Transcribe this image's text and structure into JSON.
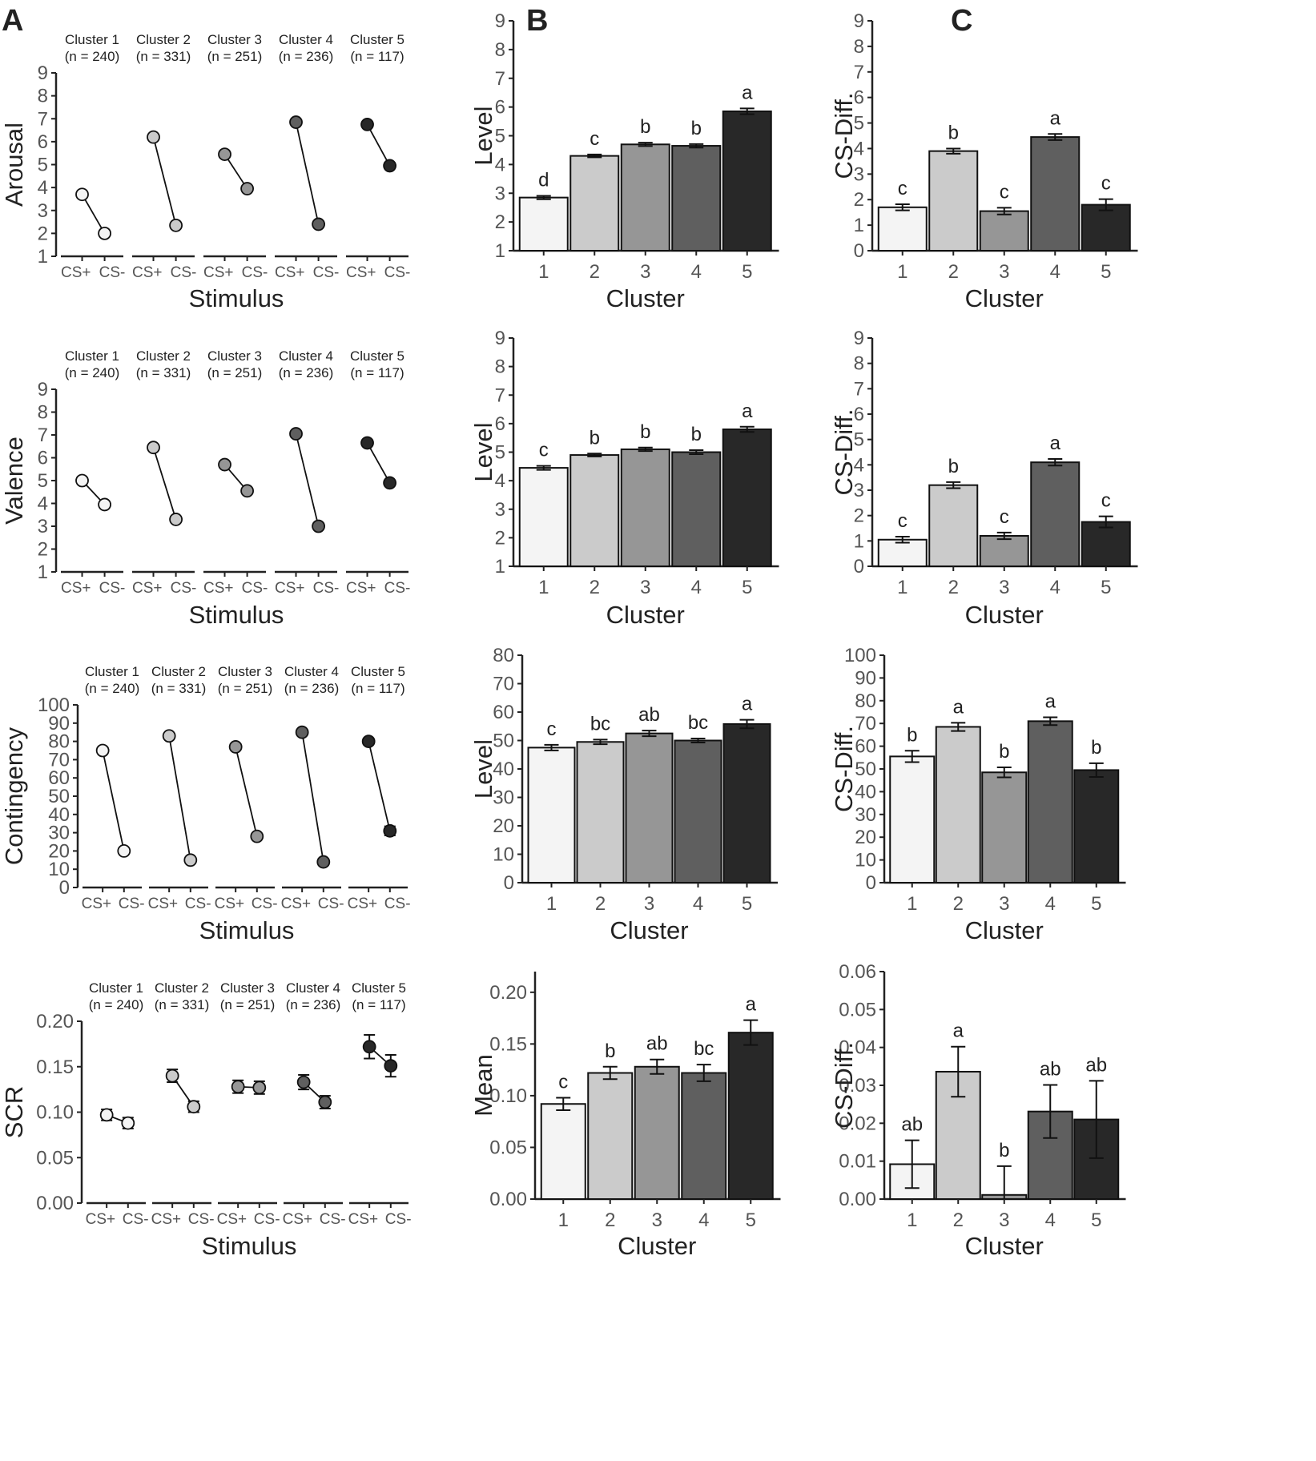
{
  "panel_letters": [
    "A",
    "B",
    "C"
  ],
  "cluster_colors": [
    "#f4f4f4",
    "#cbcbcb",
    "#969696",
    "#5f5f5f",
    "#282828"
  ],
  "chart_data": [
    {
      "id": "A1",
      "type": "line",
      "panel": "A",
      "ylabel": "Arousal",
      "xlabel": "Stimulus",
      "ylim": [
        1,
        9
      ],
      "yticks": [
        "1",
        "2",
        "3",
        "4",
        "5",
        "6",
        "7",
        "8",
        "9"
      ],
      "xticks": [
        "CS+",
        "CS-"
      ],
      "series": [
        {
          "name": "Cluster 1",
          "n": "(n = 240)",
          "values": [
            3.7,
            2.0
          ],
          "err": [
            0,
            0
          ]
        },
        {
          "name": "Cluster 2",
          "n": "(n = 331)",
          "values": [
            6.2,
            2.35
          ],
          "err": [
            0,
            0
          ]
        },
        {
          "name": "Cluster 3",
          "n": "(n = 251)",
          "values": [
            5.45,
            3.95
          ],
          "err": [
            0,
            0
          ]
        },
        {
          "name": "Cluster 4",
          "n": "(n = 236)",
          "values": [
            6.85,
            2.4
          ],
          "err": [
            0,
            0
          ]
        },
        {
          "name": "Cluster 5",
          "n": "(n = 117)",
          "values": [
            6.75,
            4.95
          ],
          "err": [
            0,
            0
          ]
        }
      ]
    },
    {
      "id": "B1",
      "type": "bar",
      "panel": "B",
      "ylabel": "Level",
      "xlabel": "Cluster",
      "ylim": [
        1,
        9
      ],
      "yticks": [
        "1",
        "2",
        "3",
        "4",
        "5",
        "6",
        "7",
        "8",
        "9"
      ],
      "categories": [
        "1",
        "2",
        "3",
        "4",
        "5"
      ],
      "values": [
        2.85,
        4.3,
        4.7,
        4.65,
        5.85
      ],
      "err": [
        0.06,
        0.05,
        0.06,
        0.06,
        0.1
      ],
      "letters": [
        "d",
        "c",
        "b",
        "b",
        "a"
      ]
    },
    {
      "id": "C1",
      "type": "bar",
      "panel": "C",
      "ylabel": "CS-Diff.",
      "xlabel": "Cluster",
      "ylim": [
        0,
        9
      ],
      "yticks": [
        "0",
        "1",
        "2",
        "3",
        "4",
        "5",
        "6",
        "7",
        "8",
        "9"
      ],
      "categories": [
        "1",
        "2",
        "3",
        "4",
        "5"
      ],
      "values": [
        1.7,
        3.9,
        1.55,
        4.45,
        1.8
      ],
      "err": [
        0.12,
        0.1,
        0.13,
        0.12,
        0.22
      ],
      "letters": [
        "c",
        "b",
        "c",
        "a",
        "c"
      ]
    },
    {
      "id": "A2",
      "type": "line",
      "panel": "A",
      "ylabel": "Valence",
      "xlabel": "Stimulus",
      "ylim": [
        1,
        9
      ],
      "yticks": [
        "1",
        "2",
        "3",
        "4",
        "5",
        "6",
        "7",
        "8",
        "9"
      ],
      "xticks": [
        "CS+",
        "CS-"
      ],
      "series": [
        {
          "name": "Cluster 1",
          "n": "(n = 240)",
          "values": [
            5.0,
            3.95
          ],
          "err": [
            0,
            0
          ]
        },
        {
          "name": "Cluster 2",
          "n": "(n = 331)",
          "values": [
            6.45,
            3.3
          ],
          "err": [
            0,
            0
          ]
        },
        {
          "name": "Cluster 3",
          "n": "(n = 251)",
          "values": [
            5.7,
            4.55
          ],
          "err": [
            0,
            0
          ]
        },
        {
          "name": "Cluster 4",
          "n": "(n = 236)",
          "values": [
            7.05,
            3.0
          ],
          "err": [
            0,
            0
          ]
        },
        {
          "name": "Cluster 5",
          "n": "(n = 117)",
          "values": [
            6.65,
            4.9
          ],
          "err": [
            0,
            0
          ]
        }
      ]
    },
    {
      "id": "B2",
      "type": "bar",
      "panel": "B",
      "ylabel": "Level",
      "xlabel": "Cluster",
      "ylim": [
        1,
        9
      ],
      "yticks": [
        "1",
        "2",
        "3",
        "4",
        "5",
        "6",
        "7",
        "8",
        "9"
      ],
      "categories": [
        "1",
        "2",
        "3",
        "4",
        "5"
      ],
      "values": [
        4.45,
        4.9,
        5.1,
        5.0,
        5.8
      ],
      "err": [
        0.07,
        0.05,
        0.06,
        0.07,
        0.09
      ],
      "letters": [
        "c",
        "b",
        "b",
        "b",
        "a"
      ]
    },
    {
      "id": "C2",
      "type": "bar",
      "panel": "C",
      "ylabel": "CS-Diff.",
      "xlabel": "Cluster",
      "ylim": [
        0,
        9
      ],
      "yticks": [
        "0",
        "1",
        "2",
        "3",
        "4",
        "5",
        "6",
        "7",
        "8",
        "9"
      ],
      "categories": [
        "1",
        "2",
        "3",
        "4",
        "5"
      ],
      "values": [
        1.05,
        3.2,
        1.2,
        4.1,
        1.75
      ],
      "err": [
        0.12,
        0.12,
        0.13,
        0.13,
        0.22
      ],
      "letters": [
        "c",
        "b",
        "c",
        "a",
        "c"
      ]
    },
    {
      "id": "A3",
      "type": "line",
      "panel": "A",
      "ylabel": "Contingency",
      "xlabel": "Stimulus",
      "ylim": [
        0,
        100
      ],
      "yticks": [
        "0",
        "10",
        "20",
        "30",
        "40",
        "50",
        "60",
        "70",
        "80",
        "90",
        "100"
      ],
      "xticks": [
        "CS+",
        "CS-"
      ],
      "series": [
        {
          "name": "Cluster 1",
          "n": "(n = 240)",
          "values": [
            75,
            20
          ],
          "err": [
            0,
            0
          ]
        },
        {
          "name": "Cluster 2",
          "n": "(n = 331)",
          "values": [
            83,
            15
          ],
          "err": [
            0,
            0
          ]
        },
        {
          "name": "Cluster 3",
          "n": "(n = 251)",
          "values": [
            77,
            28
          ],
          "err": [
            0,
            0
          ]
        },
        {
          "name": "Cluster 4",
          "n": "(n = 236)",
          "values": [
            85,
            14
          ],
          "err": [
            0,
            0
          ]
        },
        {
          "name": "Cluster 5",
          "n": "(n = 117)",
          "values": [
            80,
            31
          ],
          "err": [
            0,
            2.5
          ]
        }
      ]
    },
    {
      "id": "B3",
      "type": "bar",
      "panel": "B",
      "ylabel": "Level",
      "xlabel": "Cluster",
      "ylim": [
        0,
        80
      ],
      "yticks": [
        "0",
        "10",
        "20",
        "30",
        "40",
        "50",
        "60",
        "70",
        "80"
      ],
      "categories": [
        "1",
        "2",
        "3",
        "4",
        "5"
      ],
      "values": [
        47.5,
        49.5,
        52.5,
        50.0,
        55.8
      ],
      "err": [
        1.0,
        0.8,
        1.0,
        0.7,
        1.5
      ],
      "letters": [
        "c",
        "bc",
        "ab",
        "bc",
        "a"
      ]
    },
    {
      "id": "C3",
      "type": "bar",
      "panel": "C",
      "ylabel": "CS-Diff.",
      "xlabel": "Cluster",
      "ylim": [
        0,
        100
      ],
      "yticks": [
        "0",
        "10",
        "20",
        "30",
        "40",
        "50",
        "60",
        "70",
        "80",
        "90",
        "100"
      ],
      "categories": [
        "1",
        "2",
        "3",
        "4",
        "5"
      ],
      "values": [
        55.5,
        68.5,
        48.5,
        71.0,
        49.5
      ],
      "err": [
        2.5,
        1.8,
        2.2,
        1.7,
        3.0
      ],
      "letters": [
        "b",
        "a",
        "b",
        "a",
        "b"
      ]
    },
    {
      "id": "A4",
      "type": "line",
      "panel": "A",
      "ylabel": "SCR",
      "xlabel": "Stimulus",
      "ylim": [
        0,
        0.2
      ],
      "yticks": [
        "0.00",
        "0.05",
        "0.10",
        "0.15",
        "0.20"
      ],
      "xticks": [
        "CS+",
        "CS-"
      ],
      "series": [
        {
          "name": "Cluster 1",
          "n": "(n = 240)",
          "values": [
            0.097,
            0.088
          ],
          "err": [
            0.006,
            0.006
          ]
        },
        {
          "name": "Cluster 2",
          "n": "(n = 331)",
          "values": [
            0.14,
            0.106
          ],
          "err": [
            0.007,
            0.006
          ]
        },
        {
          "name": "Cluster 3",
          "n": "(n = 251)",
          "values": [
            0.128,
            0.127
          ],
          "err": [
            0.007,
            0.007
          ]
        },
        {
          "name": "Cluster 4",
          "n": "(n = 236)",
          "values": [
            0.133,
            0.111
          ],
          "err": [
            0.008,
            0.007
          ]
        },
        {
          "name": "Cluster 5",
          "n": "(n = 117)",
          "values": [
            0.172,
            0.151
          ],
          "err": [
            0.013,
            0.012
          ]
        }
      ]
    },
    {
      "id": "B4",
      "type": "bar",
      "panel": "B",
      "ylabel": "Mean",
      "xlabel": "Cluster",
      "ylim": [
        0,
        0.22
      ],
      "yticks": [
        "0.00",
        "0.05",
        "0.10",
        "0.15",
        "0.20"
      ],
      "categories": [
        "1",
        "2",
        "3",
        "4",
        "5"
      ],
      "values": [
        0.092,
        0.122,
        0.128,
        0.122,
        0.161
      ],
      "err": [
        0.006,
        0.006,
        0.007,
        0.008,
        0.012
      ],
      "letters": [
        "c",
        "b",
        "ab",
        "bc",
        "a"
      ]
    },
    {
      "id": "C4",
      "type": "bar",
      "panel": "C",
      "ylabel": "CS-Diff.",
      "xlabel": "Cluster",
      "ylim": [
        0,
        0.06
      ],
      "yticks": [
        "0.00",
        "0.01",
        "0.02",
        "0.03",
        "0.04",
        "0.05",
        "0.06"
      ],
      "categories": [
        "1",
        "2",
        "3",
        "4",
        "5"
      ],
      "values": [
        0.0092,
        0.0336,
        0.0011,
        0.0231,
        0.021
      ],
      "err": [
        0.0063,
        0.0066,
        0.0076,
        0.007,
        0.0102
      ],
      "letters": [
        "ab",
        "a",
        "b",
        "ab",
        "ab"
      ]
    }
  ]
}
